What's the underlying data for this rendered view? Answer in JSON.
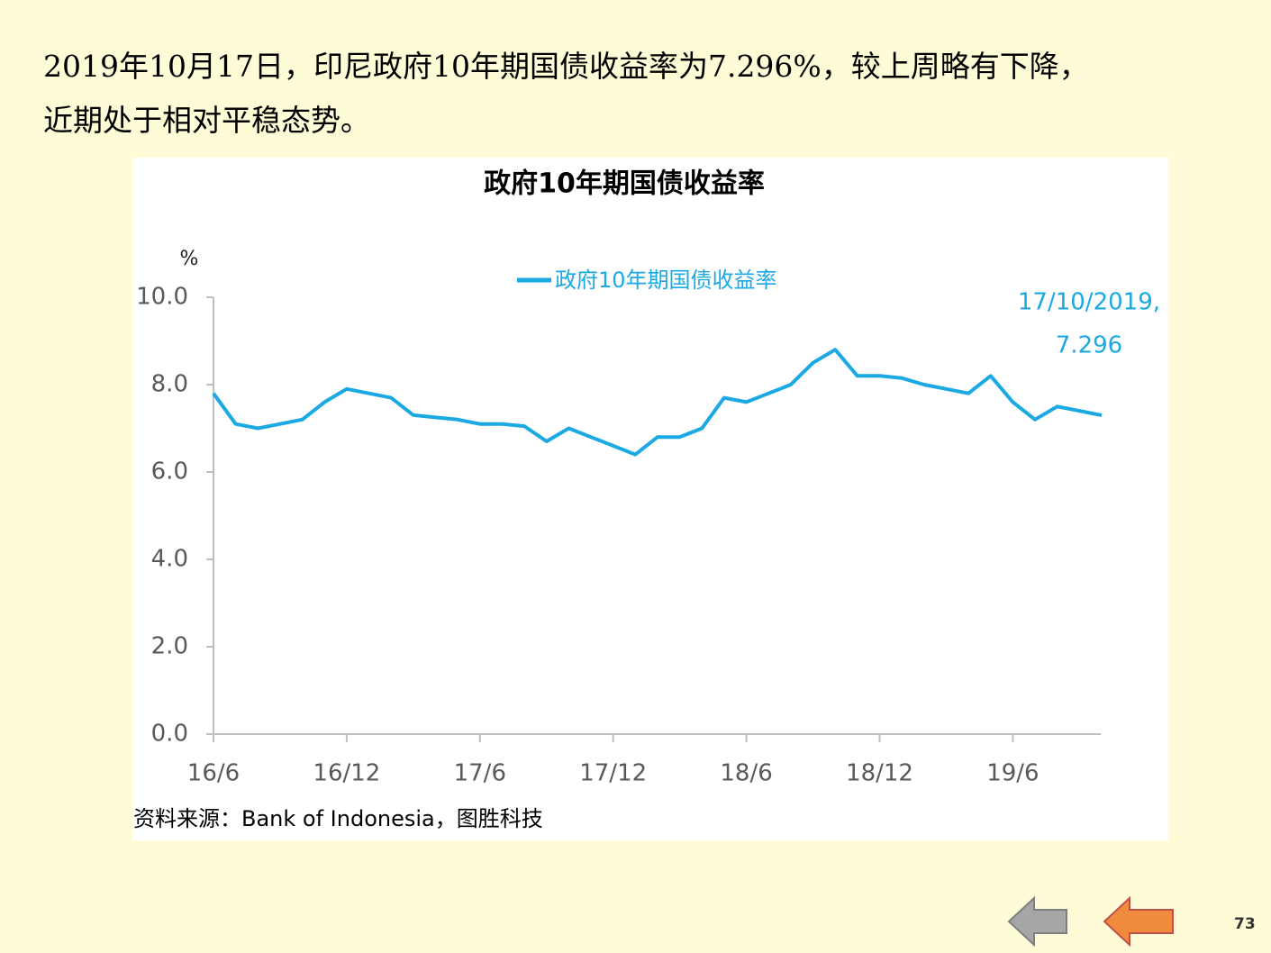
{
  "heading": [
    "2019年10月17日，印尼政府10年期国债收益率为7.296%，较上周略有下降，",
    "近期处于相对平稳态势。"
  ],
  "chart_data": {
    "type": "line",
    "title": "政府10年期国债收益率",
    "y_label": "%",
    "categories": [
      "16/6",
      null,
      null,
      null,
      null,
      null,
      "16/12",
      null,
      null,
      null,
      null,
      null,
      "17/6",
      null,
      null,
      null,
      null,
      null,
      "17/12",
      null,
      null,
      null,
      null,
      null,
      "18/6",
      null,
      null,
      null,
      null,
      null,
      "18/12",
      null,
      null,
      null,
      null,
      null,
      "19/6",
      null,
      null,
      null,
      null
    ],
    "series": [
      {
        "name": "政府10年期国债收益率",
        "color": "#1aa9e3",
        "values": [
          7.8,
          7.1,
          7.0,
          7.1,
          7.2,
          7.6,
          7.9,
          7.8,
          7.7,
          7.3,
          7.25,
          7.2,
          7.1,
          7.1,
          7.05,
          6.7,
          7.0,
          6.8,
          6.6,
          6.4,
          6.8,
          6.8,
          7.0,
          7.7,
          7.6,
          7.8,
          8.0,
          8.5,
          8.8,
          8.2,
          8.2,
          8.15,
          8.0,
          7.9,
          7.8,
          8.2,
          7.6,
          7.2,
          7.5,
          7.4,
          7.296
        ]
      }
    ],
    "annotation": "17/10/2019,",
    "ylim": [
      0,
      10
    ],
    "yticks": [
      {
        "value": 0,
        "label": "0.0"
      },
      {
        "value": 2,
        "label": "2.0"
      },
      {
        "value": 4,
        "label": "4.0"
      },
      {
        "value": 6,
        "label": "6.0"
      },
      {
        "value": 8,
        "label": "8.0"
      },
      {
        "value": 10,
        "label": "10.0"
      }
    ],
    "grid": false,
    "legend": "top"
  },
  "source": "资料来源：Bank of Indonesia，图胜科技",
  "page_number": "73"
}
